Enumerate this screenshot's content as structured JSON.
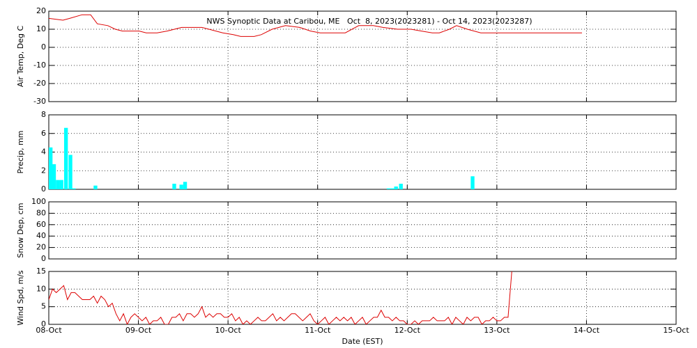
{
  "chart_data": [
    {
      "type": "line",
      "title": "NWS Synoptic Data at Caribou, ME   Oct  8, 2023(2023281) - Oct 14, 2023(2023287)",
      "ylabel": "Air Temp, Deg C",
      "color": "#dd0000",
      "grid": true,
      "x": [
        0,
        3.8,
        5.6,
        8.9,
        11.2,
        13,
        15.8,
        17.8,
        19.7,
        22.4,
        24.2,
        26.1,
        29,
        31.7,
        35.6,
        41,
        42.9,
        46.6,
        49.4,
        51.4,
        55,
        56.9,
        59.8,
        63.4,
        67.2,
        70.1,
        72.7,
        76.6,
        79.4,
        83,
        86.9,
        89.5,
        93.4,
        97,
        99.8,
        102.7,
        104.6,
        107.3,
        109.2,
        112.1,
        115.7,
        119.5,
        121.4,
        142.8
      ],
      "values": [
        16,
        15,
        16,
        18,
        18,
        13,
        12,
        10,
        9,
        9,
        9,
        8,
        8,
        9,
        11,
        11,
        10,
        8,
        7,
        6,
        6,
        7,
        10,
        12,
        11,
        9,
        8,
        8,
        8,
        12,
        12,
        11,
        10,
        10,
        9,
        8,
        8,
        10,
        12,
        10,
        8,
        8,
        8,
        8
      ],
      "xlim": [
        0,
        168
      ],
      "xticks": [
        0,
        24,
        48,
        72,
        96,
        120,
        144,
        168
      ],
      "ylim": [
        -30,
        20
      ],
      "yticks": [
        -30,
        -20,
        -10,
        0,
        10,
        20
      ]
    },
    {
      "type": "bar",
      "ylabel": "Precip, mm",
      "color": "#00ffff",
      "grid": true,
      "x": [
        0.5,
        1.4,
        2.4,
        3.4,
        4.6,
        5.8,
        6.7,
        12.5,
        33.6,
        35.5,
        36.5,
        91,
        92,
        93,
        94.3,
        113.5
      ],
      "values": [
        4.5,
        2.7,
        1.0,
        1.0,
        6.6,
        3.7,
        0.1,
        0.4,
        0.6,
        0.5,
        0.8,
        0.1,
        0.1,
        0.3,
        0.6,
        1.4
      ],
      "xlim": [
        0,
        168
      ],
      "xticks": [
        0,
        24,
        48,
        72,
        96,
        120,
        144,
        168
      ],
      "ylim": [
        0,
        8
      ],
      "yticks": [
        0,
        2,
        4,
        6,
        8
      ]
    },
    {
      "type": "line",
      "ylabel": "Snow Dep, cm",
      "grid": true,
      "xlim": [
        0,
        168
      ],
      "xticks": [
        0,
        24,
        48,
        72,
        96,
        120,
        144,
        168
      ],
      "ylim": [
        0,
        100
      ],
      "yticks": [
        0,
        20,
        40,
        60,
        80,
        100
      ]
    },
    {
      "type": "line",
      "ylabel": "Wind Spd, m/s",
      "xlabel": "Date (EST)",
      "color": "#dd0000",
      "grid": true,
      "x": [
        0,
        1,
        2,
        3,
        4,
        5,
        6,
        7,
        8,
        9,
        10,
        11,
        12,
        13,
        14,
        15,
        16,
        17,
        18,
        19,
        20,
        21,
        22,
        23,
        24,
        25,
        26,
        27,
        28,
        29,
        30,
        31,
        32,
        33,
        34,
        35,
        36,
        37,
        38,
        39,
        40,
        41,
        42,
        43,
        44,
        45,
        46,
        47,
        48,
        49,
        50,
        51,
        52,
        53,
        54,
        55,
        56,
        57,
        58,
        59,
        60,
        61,
        62,
        63,
        64,
        65,
        66,
        67,
        68,
        69,
        70,
        71,
        72,
        73,
        74,
        75,
        76,
        77,
        78,
        79,
        80,
        81,
        82,
        83,
        84,
        85,
        86,
        87,
        88,
        89,
        90,
        91,
        92,
        93,
        94,
        95,
        96,
        97,
        98,
        99,
        100,
        101,
        102,
        103,
        104,
        105,
        106,
        107,
        108,
        109,
        110,
        111,
        112,
        113,
        114,
        115,
        116,
        117,
        118,
        119,
        120,
        121,
        122,
        123,
        124
      ],
      "values": [
        7,
        10,
        9,
        10,
        11,
        7,
        9,
        9,
        8,
        7,
        7,
        7,
        8,
        6,
        8,
        7,
        5,
        6,
        3,
        1,
        3,
        0,
        2,
        3,
        2,
        1,
        2,
        0,
        1,
        1,
        2,
        0,
        0,
        2,
        2,
        3,
        1,
        3,
        3,
        2,
        3,
        5,
        2,
        3,
        2,
        3,
        3,
        2,
        2,
        3,
        1,
        2,
        0,
        1,
        0,
        1,
        2,
        1,
        1,
        2,
        3,
        1,
        2,
        1,
        2,
        3,
        3,
        2,
        1,
        2,
        3,
        1,
        0,
        1,
        2,
        0,
        1,
        2,
        1,
        2,
        1,
        2,
        0,
        1,
        2,
        0,
        1,
        2,
        2,
        4,
        2,
        2,
        1,
        2,
        1,
        1,
        0,
        0,
        1,
        0,
        1,
        1,
        1,
        2,
        1,
        1,
        1,
        2,
        0,
        2,
        1,
        0,
        2,
        1,
        2,
        2,
        0,
        1,
        1,
        2,
        1,
        1,
        2,
        2,
        15
      ],
      "xlim": [
        0,
        168
      ],
      "xticks": [
        {
          "value": 0,
          "label": "08-Oct"
        },
        {
          "value": 24,
          "label": "09-Oct"
        },
        {
          "value": 48,
          "label": "10-Oct"
        },
        {
          "value": 72,
          "label": "11-Oct"
        },
        {
          "value": 96,
          "label": "12-Oct"
        },
        {
          "value": 120,
          "label": "13-Oct"
        },
        {
          "value": 144,
          "label": "14-Oct"
        },
        {
          "value": 168,
          "label": "15-Oct"
        }
      ],
      "ylim": [
        0,
        15
      ],
      "yticks": [
        0,
        5,
        10,
        15
      ]
    }
  ]
}
